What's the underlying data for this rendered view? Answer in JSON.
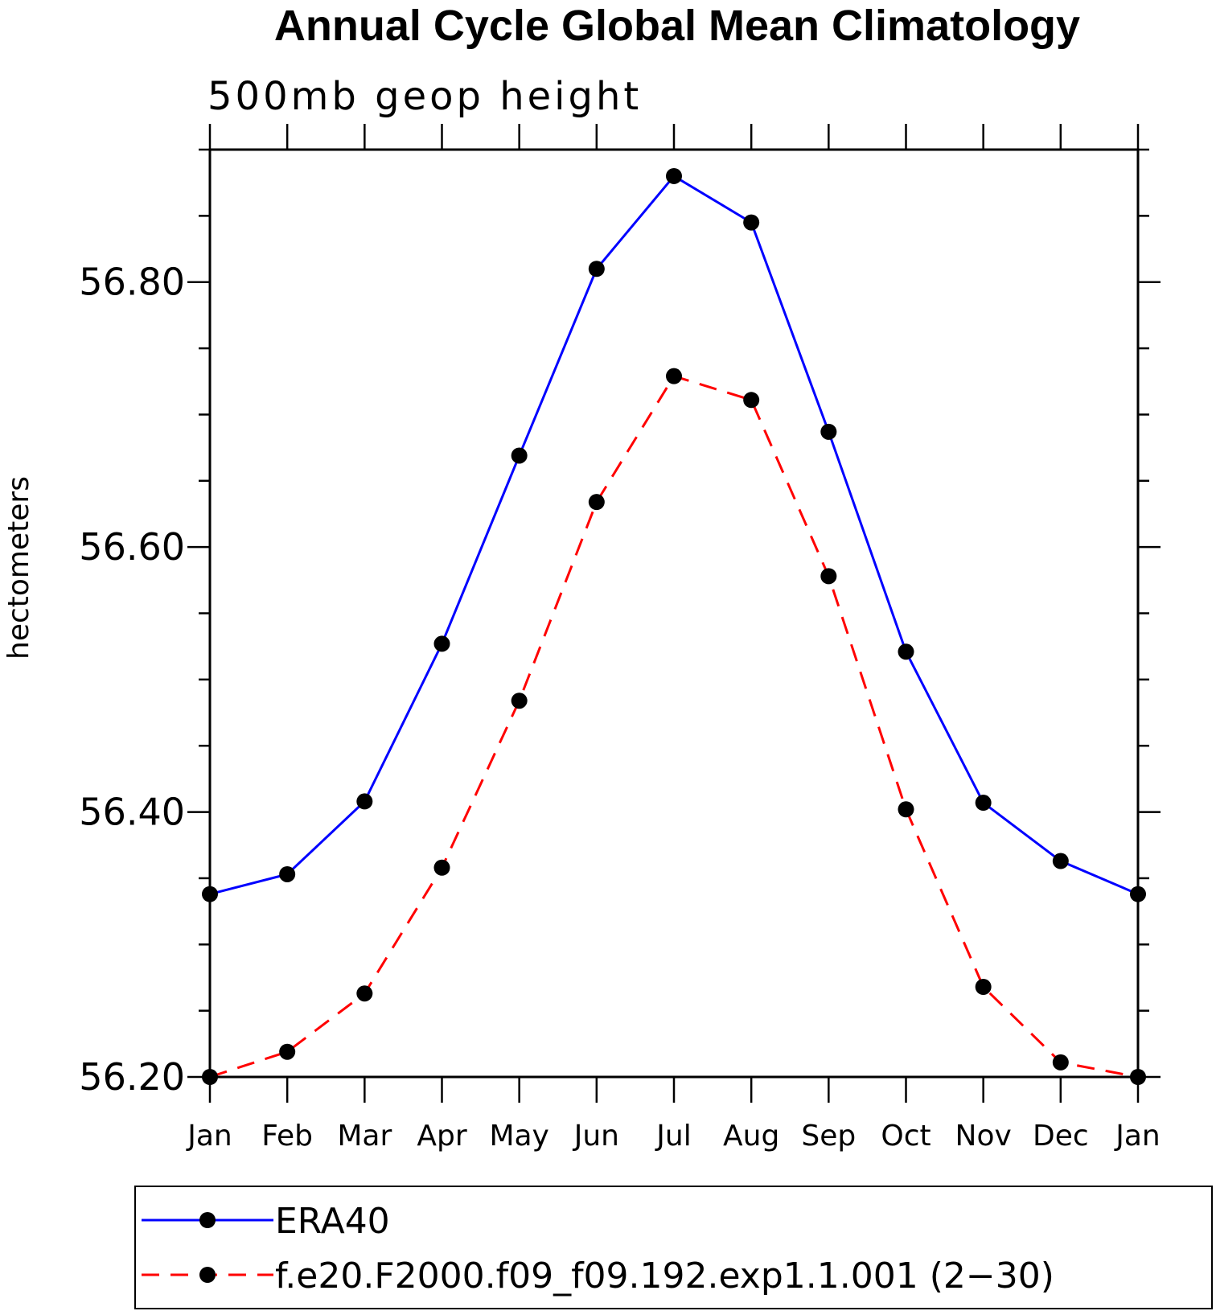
{
  "chart_data": {
    "type": "line",
    "title": "Annual Cycle Global Mean Climatology",
    "subtitle": "500mb geop height",
    "ylabel": "hectometers",
    "xlabel": "",
    "categories": [
      "Jan",
      "Feb",
      "Mar",
      "Apr",
      "May",
      "Jun",
      "Jul",
      "Aug",
      "Sep",
      "Oct",
      "Nov",
      "Dec",
      "Jan"
    ],
    "ylim": [
      56.2,
      56.9
    ],
    "yticks": [
      "56.20",
      "56.40",
      "56.60",
      "56.80"
    ],
    "ytick_values": [
      56.2,
      56.4,
      56.6,
      56.8
    ],
    "grid": false,
    "legend_position": "bottom",
    "series": [
      {
        "name": "ERA40",
        "color": "#0000ff",
        "dash": "solid",
        "marker": "filled-circle",
        "values": [
          56.338,
          56.353,
          56.408,
          56.527,
          56.669,
          56.81,
          56.88,
          56.845,
          56.687,
          56.521,
          56.407,
          56.363,
          56.338
        ]
      },
      {
        "name": "f.e20.F2000.f09_f09.192.exp1.1.001 (2−30)",
        "color": "#ff0000",
        "dash": "dashed",
        "marker": "filled-circle",
        "values": [
          56.2,
          56.219,
          56.263,
          56.358,
          56.484,
          56.634,
          56.729,
          56.711,
          56.578,
          56.402,
          56.268,
          56.211,
          56.2
        ]
      }
    ]
  }
}
